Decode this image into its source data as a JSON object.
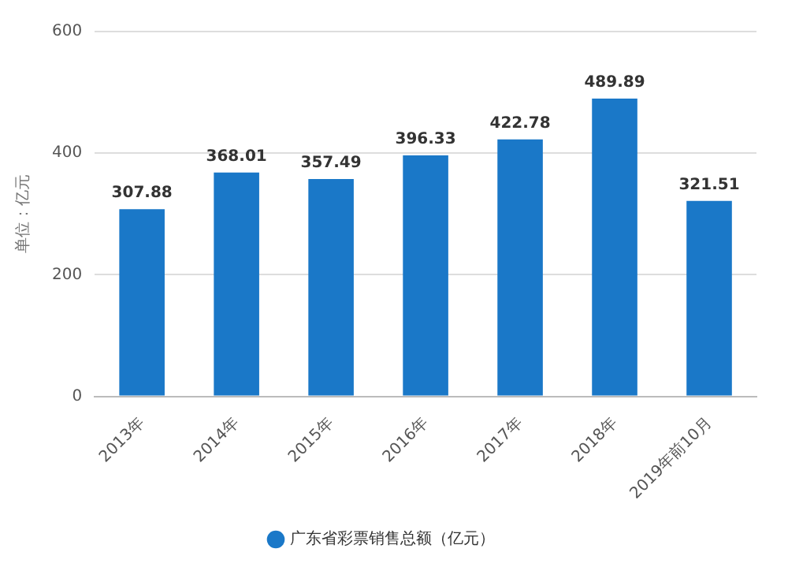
{
  "chart_data": {
    "type": "bar",
    "ylabel": "单位：亿元",
    "categories": [
      "2013年",
      "2014年",
      "2015年",
      "2016年",
      "2017年",
      "2018年",
      "2019年前10月"
    ],
    "series": [
      {
        "name": "广东省彩票销售总额（亿元）",
        "color": "#1a78c8",
        "values": [
          307.88,
          368.01,
          357.49,
          396.33,
          422.78,
          489.89,
          321.51
        ]
      }
    ],
    "ylim": [
      0,
      600
    ],
    "yticks": [
      0,
      200,
      400,
      600
    ],
    "grid": "y",
    "legend": "bottom",
    "data_labels": true
  }
}
